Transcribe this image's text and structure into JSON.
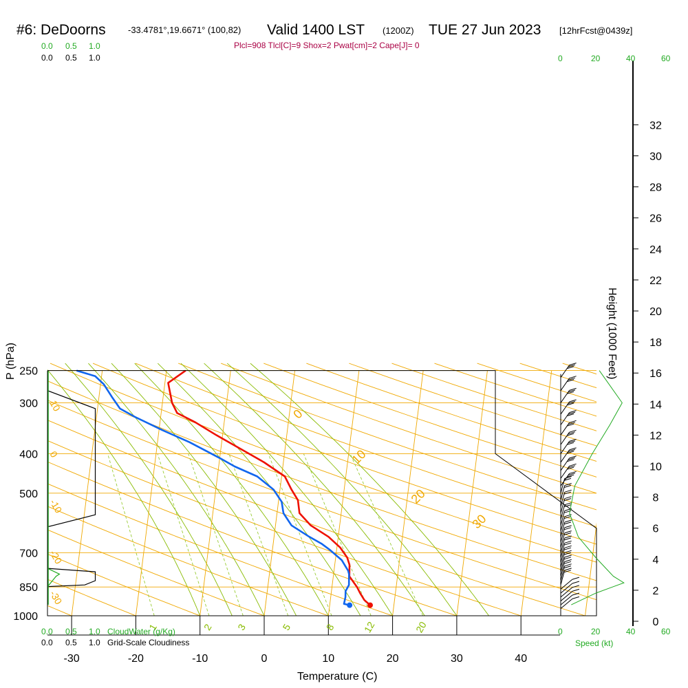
{
  "header": {
    "station": "#6: DeDoorns",
    "coords": "-33.4781°,19.6671° (100,82)",
    "valid": "Valid 1400 LST",
    "utc": "(1200Z)",
    "date": "TUE 27 Jun 2023",
    "forecast": "[12hrFcst@0439z]"
  },
  "indices": "Plcl=908 Tlcl[C]=9 Shox=2 Pwat[cm]=2 Cape[J]= 0",
  "colors": {
    "temperature": "#ee1100",
    "dewpoint": "#1166ee",
    "isotherm": "#f0a800",
    "dry_adiabat": "#f0a800",
    "moist_adiabat": "#88bb00",
    "mixing_ratio": "#99cc33",
    "cloud": "#22aa22"
  },
  "chart_data": {
    "type": "line",
    "title": "#6: DeDoorns",
    "xlabel": "Temperature (C)",
    "ylabel": "P (hPa)",
    "y2label": "Height (1000 Feet)",
    "xlim": [
      -35,
      47
    ],
    "ylim": [
      1000,
      250
    ],
    "yscale": "log",
    "x_ticks": [
      "-30",
      "-20",
      "-10",
      "0",
      "10",
      "20",
      "30",
      "40"
    ],
    "pressure_ticks": [
      "250",
      "300",
      "400",
      "500",
      "700",
      "850",
      "1000"
    ],
    "height_ticks": [
      "0",
      "2",
      "4",
      "6",
      "8",
      "10",
      "12",
      "14",
      "16",
      "18",
      "20",
      "22",
      "24",
      "26",
      "28",
      "30",
      "32"
    ],
    "isotherm_labels": [
      "0",
      "10",
      "20",
      "30"
    ],
    "dry_adiabat_labels": [
      "10",
      "0",
      "-10",
      "-20",
      "-30"
    ],
    "mixing_ratio_labels": [
      "1",
      "2",
      "3",
      "5",
      "8",
      "12",
      "20"
    ],
    "cloud_scale_top": [
      "0.0",
      "0.5",
      "1.0"
    ],
    "cloud_scale_top2": [
      "0.0",
      "0.5",
      "1.0"
    ],
    "cloud_scale_bottom": [
      "0.0",
      "0.5",
      "1.0"
    ],
    "cloud_scale_bottom2": [
      "0.0",
      "0.5",
      "1.0"
    ],
    "cloudwater_label": "CloudWater (g/Kg)",
    "cloudiness_label": "Grid-Scale Cloudiness",
    "speed_ticks": [
      "0",
      "20",
      "40",
      "60"
    ],
    "speed_label": "Speed (kt)",
    "series": [
      {
        "name": "Temperature",
        "points": [
          [
            16.3,
            942
          ],
          [
            15.3,
            915
          ],
          [
            14.5,
            880
          ],
          [
            13.9,
            850
          ],
          [
            12.5,
            800
          ],
          [
            12.3,
            750
          ],
          [
            11.8,
            720
          ],
          [
            10.5,
            680
          ],
          [
            8.5,
            640
          ],
          [
            5.5,
            600
          ],
          [
            3.5,
            560
          ],
          [
            3.0,
            520
          ],
          [
            1.8,
            490
          ],
          [
            0.5,
            455
          ],
          [
            -3.0,
            420
          ],
          [
            -7.5,
            385
          ],
          [
            -11.0,
            360
          ],
          [
            -14.5,
            335
          ],
          [
            -17.5,
            318
          ],
          [
            -18.5,
            300
          ],
          [
            -19.5,
            268
          ],
          [
            -17.0,
            250
          ]
        ]
      },
      {
        "name": "Dewpoint",
        "points": [
          [
            13.1,
            942
          ],
          [
            12.2,
            935
          ],
          [
            12.3,
            900
          ],
          [
            12.2,
            870
          ],
          [
            12.6,
            840
          ],
          [
            12.4,
            790
          ],
          [
            12.2,
            775
          ],
          [
            11.8,
            760
          ],
          [
            11.0,
            730
          ],
          [
            9.0,
            690
          ],
          [
            7.5,
            665
          ],
          [
            5.5,
            640
          ],
          [
            2.5,
            600
          ],
          [
            1.0,
            560
          ],
          [
            0.5,
            525
          ],
          [
            -1.0,
            490
          ],
          [
            -3.8,
            455
          ],
          [
            -7.5,
            430
          ],
          [
            -10.0,
            410
          ],
          [
            -15.0,
            375
          ],
          [
            -19.5,
            350
          ],
          [
            -24.0,
            325
          ],
          [
            -26.5,
            310
          ],
          [
            -28.0,
            290
          ],
          [
            -29.5,
            270
          ],
          [
            -31.0,
            258
          ],
          [
            -34.0,
            250
          ]
        ]
      }
    ]
  }
}
